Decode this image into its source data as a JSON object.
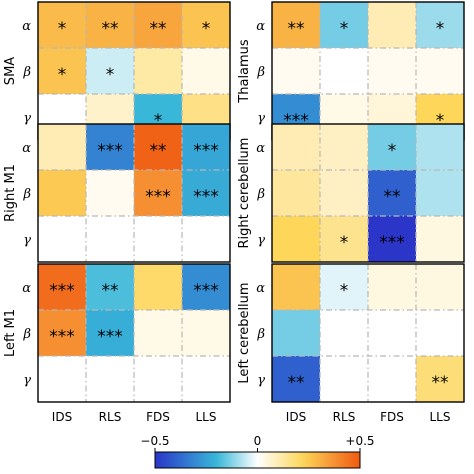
{
  "chart_data": {
    "type": "heatmap",
    "columns": [
      "IDS",
      "RLS",
      "FDS",
      "LLS"
    ],
    "rows": [
      "α",
      "β",
      "γ"
    ],
    "value_range": [
      -0.5,
      0.5
    ],
    "colorbar": {
      "ticks": [
        "−0.5",
        "0",
        "+0.5"
      ],
      "values": [
        -0.5,
        0,
        0.5
      ]
    },
    "colors": {
      "negative": "#2b35c8",
      "mid_negative": "#38b7d8",
      "zero": "#ffffff",
      "mid_positive": "#fdd65a",
      "positive": "#ef5a12"
    },
    "panels": [
      {
        "name": "SMA",
        "values": [
          [
            0.28,
            0.3,
            0.33,
            0.26
          ],
          [
            0.26,
            -0.05,
            0.12,
            0.03
          ],
          [
            0.0,
            0.07,
            -0.2,
            0.16
          ]
        ],
        "stars": [
          [
            "*",
            "**",
            "**",
            "*"
          ],
          [
            "*",
            "*",
            "",
            ""
          ],
          [
            "",
            "",
            "*",
            ""
          ]
        ]
      },
      {
        "name": "Thalamus",
        "values": [
          [
            0.3,
            -0.14,
            0.1,
            -0.1
          ],
          [
            0.02,
            0.0,
            0.02,
            0.02
          ],
          [
            -0.3,
            0.03,
            0.05,
            0.22
          ]
        ],
        "stars": [
          [
            "**",
            "*",
            "",
            "*"
          ],
          [
            "",
            "",
            "",
            ""
          ],
          [
            "***",
            "",
            "",
            "*"
          ]
        ]
      },
      {
        "name": "Right M1",
        "values": [
          [
            0.1,
            -0.32,
            0.48,
            -0.24
          ],
          [
            0.25,
            0.02,
            0.38,
            -0.23
          ],
          [
            0.0,
            0.0,
            0.0,
            0.0
          ]
        ],
        "stars": [
          [
            "",
            "***",
            "**",
            "***"
          ],
          [
            "",
            "",
            "***",
            "***"
          ],
          [
            "",
            "",
            "",
            ""
          ]
        ]
      },
      {
        "name": "Right cerebellum",
        "values": [
          [
            0.1,
            0.08,
            -0.14,
            -0.08
          ],
          [
            0.13,
            0.08,
            -0.4,
            -0.08
          ],
          [
            0.22,
            0.15,
            -0.5,
            0.04
          ]
        ],
        "stars": [
          [
            "",
            "",
            "*",
            ""
          ],
          [
            "",
            "",
            "**",
            ""
          ],
          [
            "",
            "*",
            "***",
            ""
          ]
        ]
      },
      {
        "name": "Left M1",
        "values": [
          [
            0.46,
            -0.18,
            0.2,
            -0.3
          ],
          [
            0.38,
            -0.22,
            0.03,
            0.03
          ],
          [
            0.0,
            0.0,
            0.0,
            0.0
          ]
        ],
        "stars": [
          [
            "***",
            "**",
            "",
            "***"
          ],
          [
            "***",
            "***",
            "",
            ""
          ],
          [
            "",
            "",
            "",
            ""
          ]
        ]
      },
      {
        "name": "Left cerebellum",
        "values": [
          [
            0.26,
            -0.03,
            0.04,
            0.04
          ],
          [
            -0.14,
            0.0,
            0.0,
            0.0
          ],
          [
            -0.4,
            0.0,
            0.0,
            0.18
          ]
        ],
        "stars": [
          [
            "",
            "*",
            "",
            ""
          ],
          [
            "",
            "",
            "",
            ""
          ],
          [
            "**",
            "",
            "",
            "**"
          ]
        ]
      }
    ]
  }
}
